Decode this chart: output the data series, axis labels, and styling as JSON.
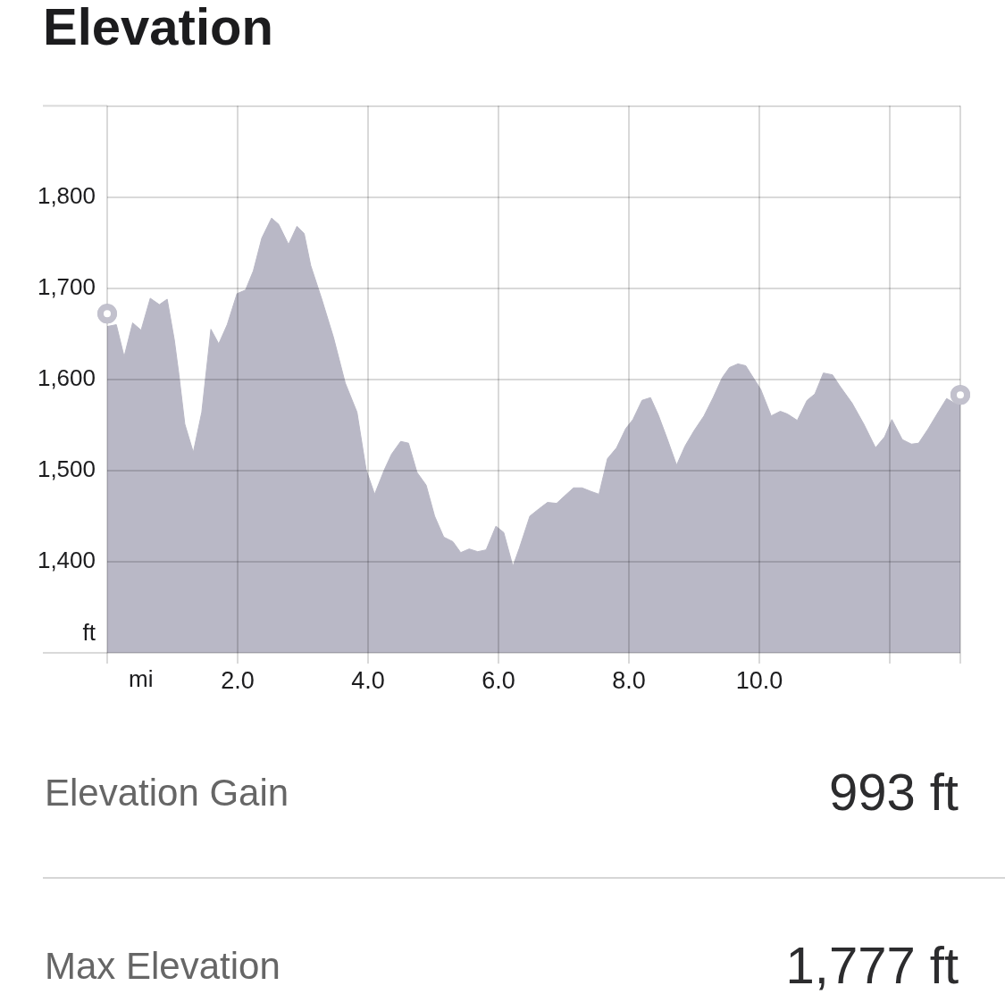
{
  "chart_data": {
    "type": "area",
    "title": "Elevation",
    "xlabel": "mi",
    "ylabel": "ft",
    "xlim": [
      0,
      13.08
    ],
    "ylim": [
      1300,
      1900
    ],
    "xticks": [
      {
        "value": 0,
        "label": null
      },
      {
        "value": 2,
        "label": "2.0"
      },
      {
        "value": 4,
        "label": "4.0"
      },
      {
        "value": 6,
        "label": "6.0"
      },
      {
        "value": 8,
        "label": "8.0"
      },
      {
        "value": 10,
        "label": "10.0"
      },
      {
        "value": 12,
        "label": null
      },
      {
        "value": 13.08,
        "label": null
      }
    ],
    "yticks": [
      {
        "value": 1300,
        "label": null
      },
      {
        "value": 1400,
        "label": "1,400"
      },
      {
        "value": 1500,
        "label": "1,500"
      },
      {
        "value": 1600,
        "label": "1,600"
      },
      {
        "value": 1700,
        "label": "1,700"
      },
      {
        "value": 1800,
        "label": "1,800"
      },
      {
        "value": 1900,
        "label": null
      }
    ],
    "grid": true,
    "series": [
      {
        "color": "#b9b8c6",
        "x": [
          0,
          0.14,
          0.26,
          0.39,
          0.52,
          0.66,
          0.8,
          0.92,
          1.03,
          1.1,
          1.19,
          1.32,
          1.45,
          1.59,
          1.71,
          1.84,
          1.99,
          2.12,
          2.24,
          2.37,
          2.52,
          2.63,
          2.78,
          2.91,
          3.02,
          3.12,
          3.29,
          3.47,
          3.65,
          3.83,
          3.97,
          4.1,
          4.25,
          4.36,
          4.5,
          4.62,
          4.75,
          4.89,
          5.02,
          5.16,
          5.3,
          5.42,
          5.55,
          5.68,
          5.81,
          5.96,
          6.08,
          6.22,
          6.32,
          6.48,
          6.62,
          6.75,
          6.89,
          7.01,
          7.15,
          7.28,
          7.42,
          7.54,
          7.67,
          7.81,
          7.95,
          8.06,
          8.2,
          8.33,
          8.45,
          8.58,
          8.73,
          8.86,
          9.0,
          9.15,
          9.29,
          9.43,
          9.54,
          9.67,
          9.79,
          9.86,
          10.02,
          10.18,
          10.32,
          10.43,
          10.58,
          10.73,
          10.85,
          10.98,
          11.12,
          11.23,
          11.42,
          11.6,
          11.78,
          11.92,
          12.03,
          12.19,
          12.33,
          12.44,
          12.58,
          12.74,
          12.87,
          12.99,
          13.08
        ],
        "values": [
          1658,
          1660,
          1625,
          1662,
          1654,
          1689,
          1682,
          1688,
          1643,
          1605,
          1551,
          1520,
          1564,
          1655,
          1639,
          1660,
          1694,
          1698,
          1719,
          1755,
          1777,
          1770,
          1748,
          1768,
          1760,
          1725,
          1688,
          1646,
          1596,
          1564,
          1501,
          1474,
          1501,
          1518,
          1532,
          1530,
          1498,
          1484,
          1450,
          1427,
          1422,
          1410,
          1414,
          1411,
          1413,
          1439,
          1432,
          1395,
          1415,
          1450,
          1458,
          1465,
          1464,
          1472,
          1481,
          1481,
          1477,
          1474,
          1513,
          1525,
          1546,
          1556,
          1577,
          1580,
          1561,
          1536,
          1506,
          1527,
          1544,
          1560,
          1580,
          1602,
          1613,
          1617,
          1615,
          1607,
          1589,
          1560,
          1565,
          1562,
          1555,
          1577,
          1584,
          1607,
          1605,
          1593,
          1574,
          1551,
          1525,
          1537,
          1556,
          1534,
          1529,
          1530,
          1545,
          1564,
          1579,
          1574,
          1577
        ]
      },
      {
        "type": "scatter",
        "color": "#c2c1cd",
        "marker": "circle",
        "x": [
          0,
          13.08
        ],
        "values": [
          1672,
          1583
        ]
      }
    ],
    "annotations": [
      "Elevation Gain",
      "993 ft",
      "Max Elevation",
      "1,777 ft"
    ]
  }
}
